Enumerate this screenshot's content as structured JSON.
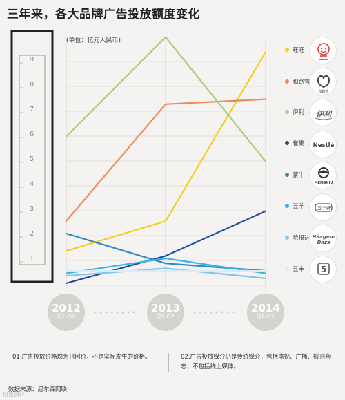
{
  "title": "三年来，各大品牌广告投放额度变化",
  "unit": "(单位：亿元人民币)",
  "colors": {
    "background": "#f4f3f1",
    "year_circle": "#d4d3d0",
    "frame": "#222222"
  },
  "chart_data": {
    "type": "line",
    "title": "三年来，各大品牌广告投放额度变化",
    "ylabel": "(单位：亿元人民币)",
    "ylim": [
      0,
      10
    ],
    "y_ticks": [
      "1",
      "2",
      "3",
      "4",
      "5",
      "6",
      "7",
      "8",
      "9"
    ],
    "x": [
      "2012 Q1-Q2",
      "2013 Q1-Q2",
      "2014 Q1-Q2"
    ],
    "grid": true,
    "legend_position": "right",
    "series": [
      {
        "name": "旺旺",
        "color": "#f5cd1b",
        "values": [
          1.3,
          2.5,
          9.3
        ]
      },
      {
        "name": "和路雪",
        "color": "#ee8a5c",
        "values": [
          2.5,
          7.2,
          7.4
        ]
      },
      {
        "name": "伊利",
        "color": "#a6cf7d",
        "values": [
          5.9,
          9.9,
          4.9
        ]
      },
      {
        "name": "雀巢",
        "color": "#1f4e9a",
        "values": [
          0.0,
          1.1,
          2.9
        ]
      },
      {
        "name": "蒙牛",
        "color": "#2f89c6",
        "values": [
          2.0,
          0.8,
          0.5
        ]
      },
      {
        "name": "五羊",
        "color": "#3ab4e2",
        "values": [
          0.4,
          1.0,
          0.4
        ]
      },
      {
        "name": "哈根达斯",
        "color": "#86c3ea",
        "values": [
          0.3,
          0.6,
          0.2
        ]
      },
      {
        "name": "五丰",
        "color": "#d9ecf8",
        "values": [
          0.5,
          0.5,
          0.5
        ]
      }
    ]
  },
  "years": [
    {
      "year": "2012",
      "period": "Q1-Q2"
    },
    {
      "year": "2013",
      "period": "Q1-Q2"
    },
    {
      "year": "2014",
      "period": "Q1-Q2"
    }
  ],
  "logos": [
    {
      "name": "wangwang-logo",
      "text": ""
    },
    {
      "name": "wallsmilk-logo",
      "text": "和路雪"
    },
    {
      "name": "yili-logo",
      "text": "伊利"
    },
    {
      "name": "nestle-logo",
      "text": "Nestlé"
    },
    {
      "name": "mengniu-logo",
      "text": "MENGNIU"
    },
    {
      "name": "wuyang-logo",
      "text": "五羊牌"
    },
    {
      "name": "haagendazs-logo",
      "text": "Häagen-Dazs"
    },
    {
      "name": "wufeng-logo",
      "text": "5"
    }
  ],
  "footnotes": {
    "note1": "01.广告投放价格均为刊例价，不是实际发生的价格。",
    "note2_line1": "02.广告投放媒介仍是传统媒介，包括电视、广播、报刊杂",
    "note2_line2": "志，不包括线上媒体。"
  },
  "source": "数据来源：尼尔森网联",
  "watermark": "凤凰财经"
}
